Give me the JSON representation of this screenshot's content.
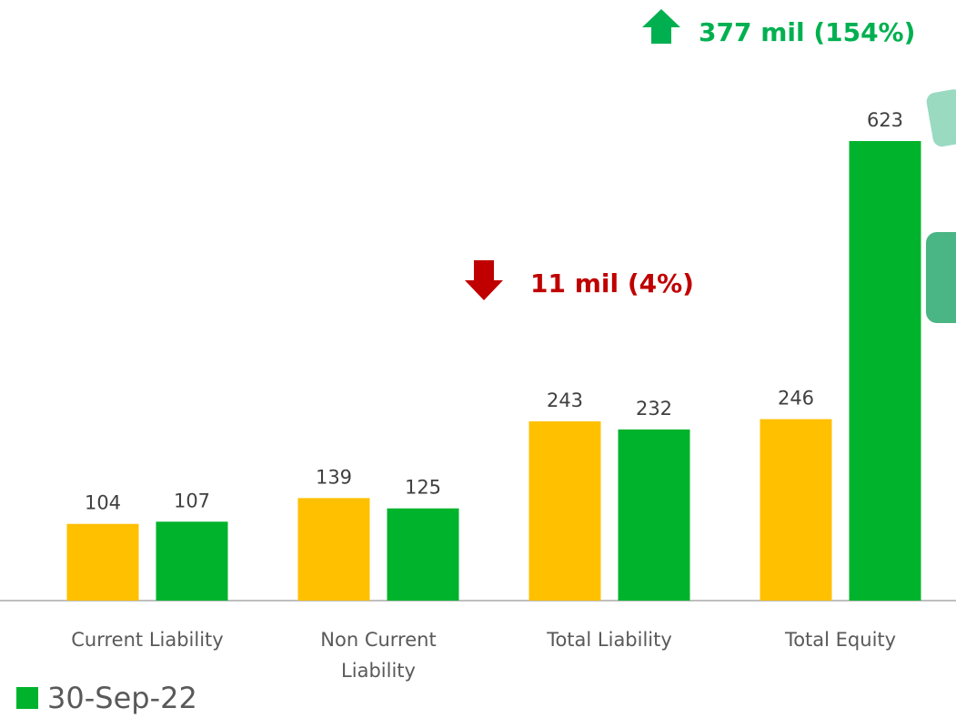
{
  "chart_data": {
    "type": "bar",
    "categories": [
      "Current Liability",
      "Non Current Liability",
      "Total Liability",
      "Total Equity"
    ],
    "series": [
      {
        "color": "#ffc000",
        "values": [
          104,
          139,
          243,
          246
        ]
      },
      {
        "name": "30-Sep-22",
        "color": "#00b32c",
        "values": [
          107,
          125,
          232,
          623
        ]
      }
    ],
    "annotations": [
      {
        "text": "377 mil (154%)",
        "color": "#00b050"
      },
      {
        "text": "11 mil (4%)",
        "color": "#c00000"
      }
    ]
  }
}
